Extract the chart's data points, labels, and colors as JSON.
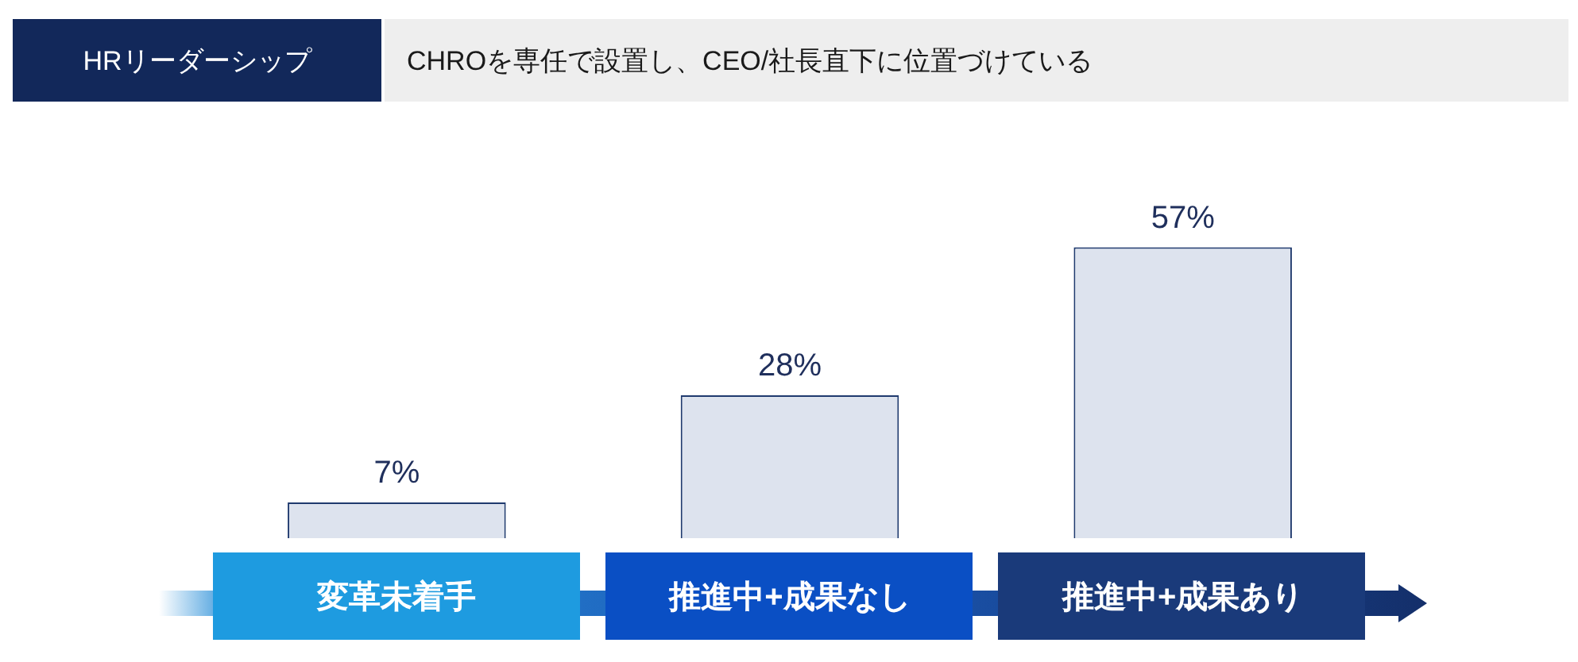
{
  "chart_data": {
    "type": "bar",
    "title": "CHROを専任で設置し、CEO/社長直下に位置づけている",
    "subtitle": "HRリーダーシップ",
    "categories": [
      "変革未着手",
      "推進中+成果なし",
      "推進中+成果あり"
    ],
    "values": [
      7,
      28,
      57
    ],
    "value_labels": [
      "7%",
      "28%",
      "57%"
    ],
    "color": "#dde3ee",
    "tick_labels": "x",
    "grid": false,
    "legend": false
  }
}
